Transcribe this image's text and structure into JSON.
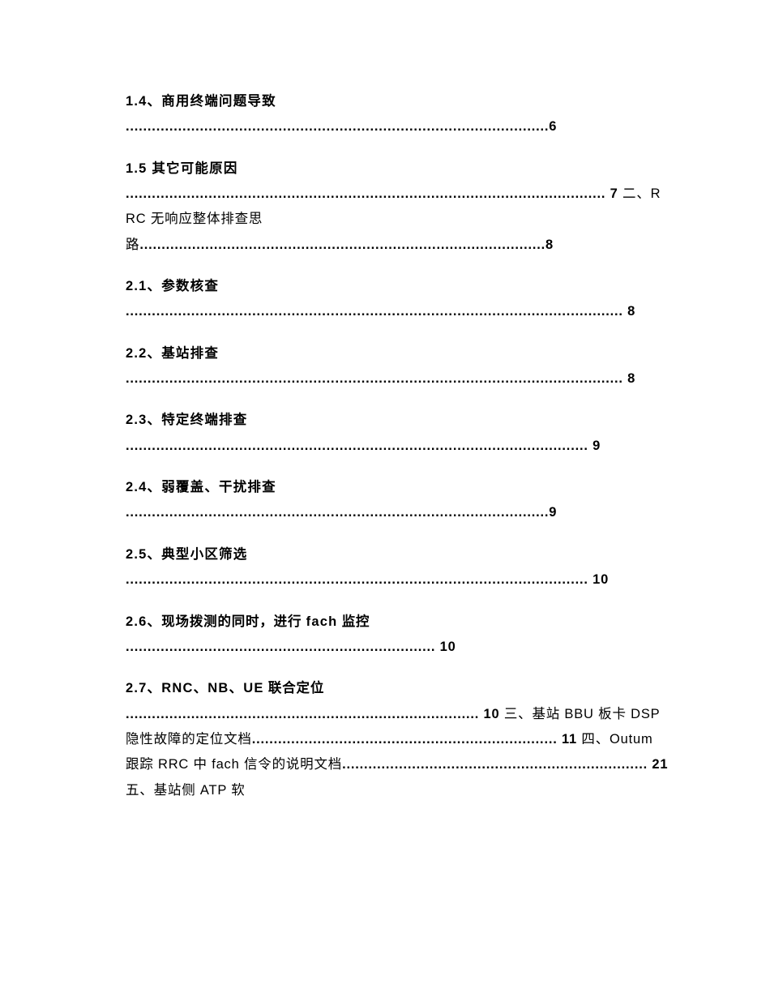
{
  "text_color": "#000000",
  "background_color": "#ffffff",
  "font_family": "Microsoft YaHei / Segoe UI / Arial",
  "base_fontsize": 16.5,
  "letter_spacing": 0.8,
  "bold_weight": 700,
  "normal_weight": 400,
  "toc": {
    "e1": {
      "title": "1.4、商用终端问题导致",
      "leaders": ".................................................................................................6"
    },
    "e2": {
      "title": "1.5 其它可能原因",
      "leaders_a": ".............................................................................................................. 7 ",
      "seg2_b": "二、",
      "seg2_n": "RRC 无响应整体排查思路",
      "leaders_b": ".............................................................................................8"
    },
    "e3": {
      "title": "2.1、参数核查",
      "leaders": ".................................................................................................................. 8"
    },
    "e4": {
      "title": "2.2、基站排查",
      "leaders": ".................................................................................................................. 8"
    },
    "e5": {
      "title": "2.3、特定终端排查",
      "leaders": ".......................................................................................................... 9"
    },
    "e6": {
      "title": "2.4、弱覆盖、干扰排查",
      "leaders": ".................................................................................................9"
    },
    "e7": {
      "title": "2.5、典型小区筛选",
      "leaders": ".......................................................................................................... 10"
    },
    "e8": {
      "title_a": "2.6、",
      "title_b": "现场拨测的同时，进行 ",
      "title_c": "fach",
      "title_d": " 监控",
      "leaders": "....................................................................... 10"
    },
    "e9": {
      "title_a": "2.7、RNC、NB、UE",
      "title_b": " 联合定位",
      "leaders_a": "................................................................................. 10 ",
      "seg2_n1": "三、基站 BBU 板卡 DSP 隐性故障的定位文档",
      "leaders_b": "...................................................................... 11 ",
      "seg3_n1": "四、Outum 跟踪 RRC 中 fach 信令的说明文档",
      "leaders_c": "...................................................................... 21 ",
      "seg4_n1": "五、基站侧 ATP 软"
    }
  }
}
